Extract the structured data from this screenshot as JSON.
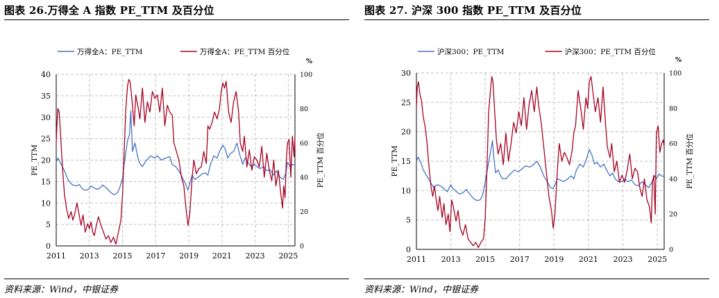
{
  "figures": [
    {
      "title": "图表 26.万得全 A 指数 PE_TTM 及百分位",
      "source": "资料来源：Wind，中银证券"
    },
    {
      "title": "图表 27. 沪深 300 指数 PE_TTM 及百分位",
      "source": "资料来源：Wind，中银证券"
    }
  ],
  "chart_data": [
    {
      "type": "line",
      "ylabel": "PE_TTM",
      "y2label": "PE_TTM 百分位",
      "y2unit": "%",
      "ylim": [
        0,
        40
      ],
      "y2lim": [
        0,
        100
      ],
      "yticks": [
        0,
        5,
        10,
        15,
        20,
        25,
        30,
        35,
        40
      ],
      "y2ticks": [
        0,
        20,
        40,
        60,
        80,
        100
      ],
      "xlim": [
        2011.0,
        2025.4
      ],
      "xticks": [
        "2011",
        "2013",
        "2015",
        "2017",
        "2019",
        "2021",
        "2023",
        "2025"
      ],
      "grid": true,
      "legend": "top",
      "series": [
        {
          "name": "万得全A：PE_TTM",
          "axis": "left",
          "color": "#4472c4",
          "x": [
            2011.0,
            2011.1,
            2011.3,
            2011.5,
            2011.7,
            2011.9,
            2012.0,
            2012.2,
            2012.4,
            2012.6,
            2012.8,
            2012.95,
            2013.1,
            2013.3,
            2013.45,
            2013.6,
            2013.8,
            2014.0,
            2014.2,
            2014.4,
            2014.55,
            2014.7,
            2014.85,
            2015.0,
            2015.15,
            2015.3,
            2015.42,
            2015.5,
            2015.6,
            2015.75,
            2015.9,
            2016.0,
            2016.2,
            2016.45,
            2016.7,
            2016.9,
            2017.1,
            2017.35,
            2017.6,
            2017.85,
            2018.0,
            2018.2,
            2018.4,
            2018.6,
            2018.8,
            2018.95,
            2019.05,
            2019.2,
            2019.35,
            2019.55,
            2019.8,
            2020.0,
            2020.15,
            2020.3,
            2020.5,
            2020.7,
            2020.9,
            2021.05,
            2021.2,
            2021.35,
            2021.5,
            2021.7,
            2021.9,
            2022.05,
            2022.25,
            2022.4,
            2022.55,
            2022.75,
            2022.95,
            2023.1,
            2023.3,
            2023.5,
            2023.7,
            2023.9,
            2024.1,
            2024.3,
            2024.5,
            2024.7,
            2024.85,
            2024.95,
            2025.1,
            2025.25,
            2025.4
          ],
          "y": [
            19.5,
            20.5,
            19.0,
            17.5,
            15.5,
            14.5,
            14.2,
            14.0,
            14.3,
            13.2,
            13.0,
            13.2,
            14.0,
            13.5,
            13.2,
            13.4,
            14.2,
            13.6,
            12.8,
            12.1,
            12.0,
            12.4,
            13.8,
            15.8,
            20.5,
            24.5,
            26.0,
            31.5,
            22.0,
            24.0,
            21.0,
            19.5,
            18.5,
            20.0,
            21.0,
            20.5,
            21.0,
            20.0,
            20.5,
            20.8,
            19.0,
            18.5,
            17.5,
            16.0,
            14.5,
            13.0,
            14.5,
            16.5,
            15.5,
            16.0,
            16.8,
            17.0,
            16.5,
            19.0,
            21.0,
            20.5,
            22.5,
            23.5,
            22.5,
            20.5,
            21.5,
            22.0,
            24.0,
            21.5,
            19.0,
            20.5,
            19.5,
            18.5,
            19.0,
            18.5,
            18.0,
            18.5,
            17.5,
            17.8,
            16.5,
            17.5,
            16.0,
            15.5,
            17.0,
            19.5,
            18.5,
            19.0,
            18.8
          ]
        },
        {
          "name": "万得全A：PE_TTM 百分位",
          "axis": "right",
          "color": "#a50021",
          "x": [
            2011.0,
            2011.05,
            2011.1,
            2011.18,
            2011.28,
            2011.38,
            2011.5,
            2011.62,
            2011.75,
            2011.9,
            2012.0,
            2012.1,
            2012.25,
            2012.35,
            2012.5,
            2012.62,
            2012.75,
            2012.9,
            2013.0,
            2013.1,
            2013.2,
            2013.3,
            2013.42,
            2013.55,
            2013.7,
            2013.85,
            2014.0,
            2014.15,
            2014.3,
            2014.45,
            2014.6,
            2014.75,
            2014.9,
            2015.0,
            2015.1,
            2015.2,
            2015.3,
            2015.38,
            2015.45,
            2015.52,
            2015.6,
            2015.7,
            2015.8,
            2015.95,
            2016.05,
            2016.2,
            2016.35,
            2016.5,
            2016.65,
            2016.8,
            2016.95,
            2017.1,
            2017.25,
            2017.4,
            2017.55,
            2017.7,
            2017.85,
            2018.0,
            2018.1,
            2018.25,
            2018.4,
            2018.55,
            2018.7,
            2018.85,
            2018.95,
            2019.05,
            2019.2,
            2019.3,
            2019.45,
            2019.6,
            2019.75,
            2019.9,
            2020.05,
            2020.15,
            2020.25,
            2020.4,
            2020.55,
            2020.7,
            2020.85,
            2020.95,
            2021.05,
            2021.15,
            2021.25,
            2021.4,
            2021.55,
            2021.7,
            2021.85,
            2022.0,
            2022.1,
            2022.25,
            2022.35,
            2022.5,
            2022.65,
            2022.8,
            2022.95,
            2023.1,
            2023.25,
            2023.4,
            2023.55,
            2023.7,
            2023.85,
            2024.0,
            2024.12,
            2024.25,
            2024.4,
            2024.55,
            2024.65,
            2024.72,
            2024.8,
            2024.88,
            2024.95,
            2025.05,
            2025.15,
            2025.25,
            2025.35,
            2025.4
          ],
          "y": [
            60,
            72,
            80,
            78,
            62,
            45,
            30,
            22,
            16,
            20,
            15,
            18,
            25,
            20,
            12,
            18,
            8,
            13,
            10,
            14,
            8,
            6,
            12,
            17,
            12,
            8,
            4,
            6,
            2,
            5,
            1,
            8,
            15,
            30,
            55,
            80,
            93,
            97,
            96,
            90,
            82,
            70,
            88,
            80,
            74,
            92,
            72,
            84,
            78,
            90,
            86,
            88,
            78,
            92,
            70,
            82,
            78,
            76,
            60,
            55,
            50,
            40,
            35,
            20,
            12,
            18,
            40,
            50,
            42,
            45,
            46,
            55,
            48,
            70,
            68,
            72,
            78,
            74,
            80,
            90,
            95,
            92,
            96,
            78,
            72,
            84,
            90,
            78,
            60,
            55,
            64,
            46,
            56,
            44,
            52,
            50,
            46,
            58,
            40,
            54,
            44,
            38,
            50,
            35,
            44,
            30,
            22,
            35,
            28,
            50,
            60,
            62,
            40,
            64,
            52,
            64
          ]
        }
      ]
    },
    {
      "type": "line",
      "ylabel": "PE_TTM",
      "y2label": "PE_TTM 百分位",
      "y2unit": "%",
      "ylim": [
        0,
        30
      ],
      "y2lim": [
        0,
        100
      ],
      "yticks": [
        0,
        5,
        10,
        15,
        20,
        25,
        30
      ],
      "y2ticks": [
        0,
        20,
        40,
        60,
        80,
        100
      ],
      "xlim": [
        2011.0,
        2025.4
      ],
      "xticks": [
        "2011",
        "2013",
        "2015",
        "2017",
        "2019",
        "2021",
        "2023",
        "2025"
      ],
      "grid": true,
      "legend": "top",
      "series": [
        {
          "name": "沪深300：PE_TTM",
          "axis": "left",
          "color": "#4472c4",
          "x": [
            2011.0,
            2011.1,
            2011.25,
            2011.4,
            2011.6,
            2011.8,
            2012.0,
            2012.2,
            2012.4,
            2012.6,
            2012.8,
            2013.0,
            2013.1,
            2013.3,
            2013.5,
            2013.7,
            2013.9,
            2014.1,
            2014.3,
            2014.5,
            2014.7,
            2014.85,
            2015.0,
            2015.15,
            2015.3,
            2015.42,
            2015.5,
            2015.6,
            2015.75,
            2015.9,
            2016.0,
            2016.2,
            2016.45,
            2016.7,
            2016.9,
            2017.1,
            2017.35,
            2017.6,
            2017.85,
            2018.0,
            2018.2,
            2018.4,
            2018.6,
            2018.8,
            2018.95,
            2019.05,
            2019.2,
            2019.35,
            2019.55,
            2019.8,
            2020.0,
            2020.15,
            2020.3,
            2020.5,
            2020.7,
            2020.9,
            2021.05,
            2021.2,
            2021.35,
            2021.5,
            2021.7,
            2021.9,
            2022.05,
            2022.25,
            2022.4,
            2022.55,
            2022.75,
            2022.95,
            2023.1,
            2023.3,
            2023.5,
            2023.7,
            2023.9,
            2024.1,
            2024.3,
            2024.5,
            2024.7,
            2024.85,
            2024.95,
            2025.1,
            2025.25,
            2025.4
          ],
          "y": [
            15.0,
            15.7,
            14.8,
            13.5,
            12.5,
            11.5,
            10.5,
            11.0,
            10.8,
            10.3,
            9.8,
            11.0,
            10.4,
            9.9,
            9.4,
            9.6,
            10.2,
            9.4,
            8.7,
            8.3,
            8.4,
            9.2,
            11.5,
            14.0,
            16.5,
            18.5,
            15.5,
            13.0,
            13.5,
            12.5,
            12.0,
            12.0,
            12.8,
            13.5,
            13.2,
            13.6,
            14.2,
            14.0,
            14.5,
            15.0,
            14.0,
            12.5,
            11.5,
            10.5,
            10.3,
            11.0,
            12.0,
            11.8,
            11.5,
            12.0,
            12.5,
            12.0,
            13.5,
            14.5,
            14.0,
            15.5,
            17.0,
            16.0,
            14.5,
            14.8,
            14.0,
            14.5,
            13.5,
            12.5,
            13.0,
            12.0,
            11.5,
            11.5,
            12.0,
            11.5,
            11.8,
            11.0,
            10.8,
            11.5,
            11.0,
            10.5,
            11.5,
            12.5,
            12.0,
            12.8,
            12.5,
            12.4
          ]
        },
        {
          "name": "沪深300：PE_TTM 百分位",
          "axis": "right",
          "color": "#a50021",
          "x": [
            2011.0,
            2011.05,
            2011.12,
            2011.2,
            2011.3,
            2011.4,
            2011.5,
            2011.6,
            2011.72,
            2011.85,
            2011.95,
            2012.05,
            2012.15,
            2012.25,
            2012.35,
            2012.5,
            2012.6,
            2012.72,
            2012.85,
            2012.95,
            2013.05,
            2013.15,
            2013.3,
            2013.42,
            2013.55,
            2013.7,
            2013.85,
            2014.0,
            2014.15,
            2014.3,
            2014.45,
            2014.6,
            2014.75,
            2014.9,
            2015.0,
            2015.1,
            2015.2,
            2015.3,
            2015.38,
            2015.45,
            2015.55,
            2015.65,
            2015.75,
            2015.9,
            2016.05,
            2016.2,
            2016.35,
            2016.5,
            2016.65,
            2016.8,
            2016.95,
            2017.1,
            2017.25,
            2017.4,
            2017.55,
            2017.7,
            2017.85,
            2018.0,
            2018.1,
            2018.25,
            2018.4,
            2018.55,
            2018.7,
            2018.85,
            2018.95,
            2019.05,
            2019.2,
            2019.3,
            2019.45,
            2019.6,
            2019.75,
            2019.9,
            2020.05,
            2020.15,
            2020.25,
            2020.4,
            2020.55,
            2020.7,
            2020.85,
            2020.95,
            2021.05,
            2021.15,
            2021.25,
            2021.4,
            2021.55,
            2021.7,
            2021.85,
            2022.0,
            2022.1,
            2022.25,
            2022.35,
            2022.5,
            2022.65,
            2022.8,
            2022.95,
            2023.1,
            2023.25,
            2023.4,
            2023.55,
            2023.7,
            2023.85,
            2024.0,
            2024.12,
            2024.25,
            2024.4,
            2024.55,
            2024.65,
            2024.72,
            2024.8,
            2024.88,
            2024.95,
            2025.05,
            2025.15,
            2025.25,
            2025.35,
            2025.4
          ],
          "y": [
            80,
            92,
            95,
            88,
            84,
            75,
            70,
            62,
            48,
            35,
            30,
            36,
            28,
            22,
            30,
            18,
            26,
            14,
            20,
            10,
            28,
            24,
            16,
            22,
            12,
            8,
            14,
            6,
            4,
            2,
            4,
            1,
            4,
            6,
            18,
            45,
            78,
            90,
            98,
            95,
            78,
            62,
            54,
            60,
            48,
            66,
            50,
            60,
            72,
            66,
            78,
            70,
            86,
            68,
            82,
            90,
            78,
            92,
            82,
            72,
            58,
            44,
            30,
            22,
            12,
            20,
            46,
            60,
            50,
            55,
            52,
            48,
            56,
            66,
            70,
            90,
            80,
            68,
            86,
            80,
            95,
            98,
            90,
            78,
            86,
            72,
            92,
            70,
            58,
            52,
            60,
            44,
            50,
            38,
            42,
            38,
            45,
            54,
            40,
            46,
            44,
            34,
            30,
            40,
            28,
            24,
            15,
            38,
            42,
            20,
            66,
            70,
            55,
            60,
            62,
            58
          ]
        }
      ]
    }
  ]
}
